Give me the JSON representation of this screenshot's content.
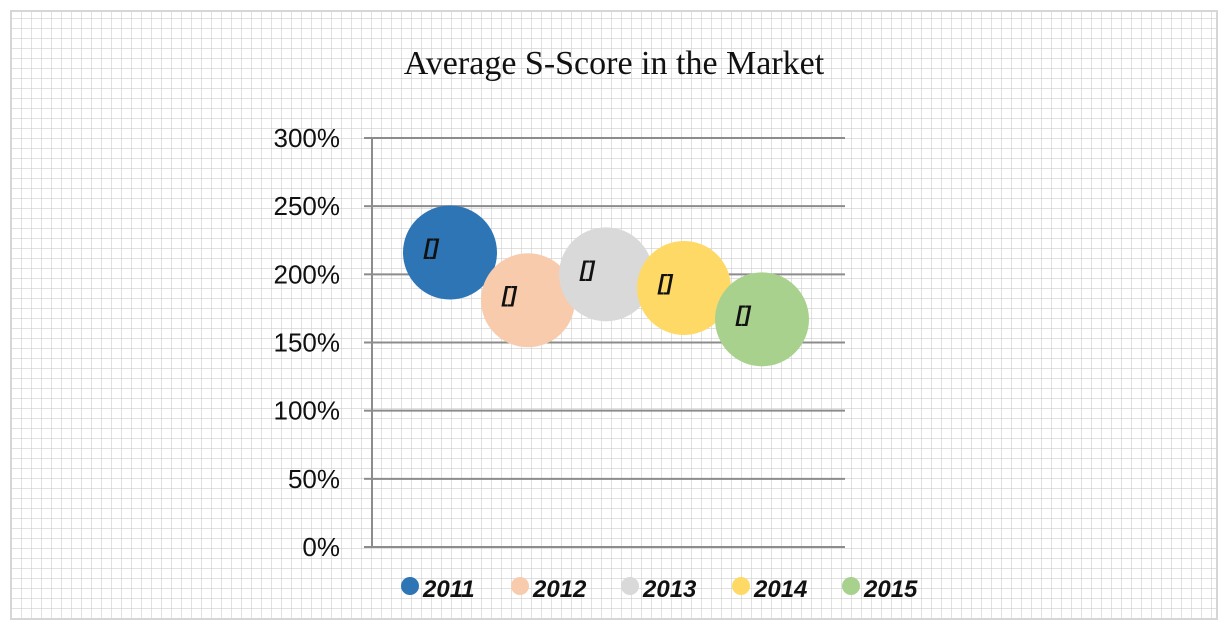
{
  "chart_data": {
    "type": "scatter",
    "title": "Average  S-Score in the Market",
    "xlabel": "",
    "ylabel": "",
    "ylim": [
      0,
      3.0
    ],
    "yticks": [
      {
        "value": 0,
        "label": "0%"
      },
      {
        "value": 0.5,
        "label": "50%"
      },
      {
        "value": 1.0,
        "label": "100%"
      },
      {
        "value": 1.5,
        "label": "150%"
      },
      {
        "value": 2.0,
        "label": "200%"
      },
      {
        "value": 2.5,
        "label": "250%"
      },
      {
        "value": 3.0,
        "label": "300%"
      }
    ],
    "grid": "horizontal",
    "legend_position": "bottom",
    "series": [
      {
        "name": "2011",
        "x": 1,
        "y": 2.16,
        "color": "#2e75b6",
        "data_label": "[]"
      },
      {
        "name": "2012",
        "x": 2,
        "y": 1.81,
        "color": "#f8cbad",
        "data_label": "[]"
      },
      {
        "name": "2013",
        "x": 3,
        "y": 2.0,
        "color": "#d9d9d9",
        "data_label": "[]"
      },
      {
        "name": "2014",
        "x": 4,
        "y": 1.9,
        "color": "#ffd966",
        "data_label": "[]"
      },
      {
        "name": "2015",
        "x": 5,
        "y": 1.67,
        "color": "#a9d18e",
        "data_label": "[]"
      }
    ]
  }
}
